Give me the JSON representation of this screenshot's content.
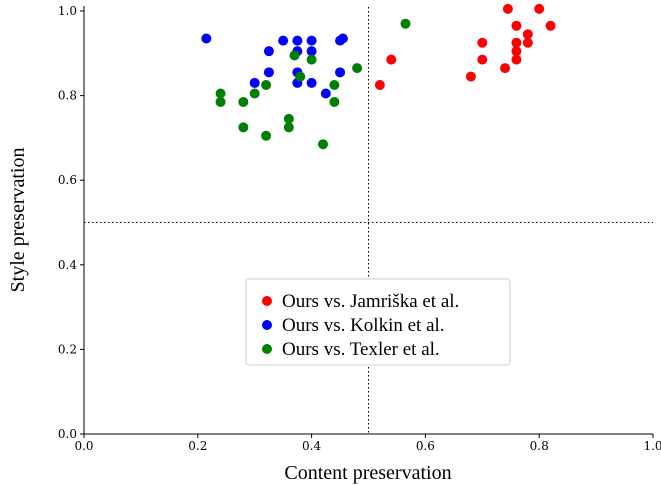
{
  "chart_data": {
    "type": "scatter",
    "xlabel": "Content preservation",
    "ylabel": "Style preservation",
    "xlim": [
      0.0,
      1.0
    ],
    "ylim": [
      0.0,
      1.0
    ],
    "xticks": [
      "0.0",
      "0.2",
      "0.4",
      "0.6",
      "0.8",
      "1.0"
    ],
    "yticks": [
      "0.0",
      "0.2",
      "0.4",
      "0.6",
      "0.8",
      "1.0"
    ],
    "grid": false,
    "reference_lines": {
      "x": 0.5,
      "y": 0.5,
      "style": "dotted"
    },
    "legend_position": "center",
    "series": [
      {
        "name": "Ours vs. Jamriška et al.",
        "color": "#ff0000",
        "points": [
          [
            0.52,
            0.825
          ],
          [
            0.54,
            0.885
          ],
          [
            0.68,
            0.845
          ],
          [
            0.7,
            0.885
          ],
          [
            0.7,
            0.925
          ],
          [
            0.74,
            0.865
          ],
          [
            0.745,
            1.005
          ],
          [
            0.76,
            0.965
          ],
          [
            0.76,
            0.925
          ],
          [
            0.76,
            0.905
          ],
          [
            0.76,
            0.885
          ],
          [
            0.78,
            0.945
          ],
          [
            0.78,
            0.925
          ],
          [
            0.8,
            1.005
          ],
          [
            0.82,
            0.965
          ]
        ]
      },
      {
        "name": "Ours vs. Kolkin et al.",
        "color": "#0000ff",
        "points": [
          [
            0.215,
            0.935
          ],
          [
            0.3,
            0.83
          ],
          [
            0.325,
            0.905
          ],
          [
            0.325,
            0.855
          ],
          [
            0.35,
            0.93
          ],
          [
            0.375,
            0.93
          ],
          [
            0.375,
            0.905
          ],
          [
            0.375,
            0.855
          ],
          [
            0.375,
            0.83
          ],
          [
            0.4,
            0.93
          ],
          [
            0.4,
            0.905
          ],
          [
            0.4,
            0.83
          ],
          [
            0.425,
            0.805
          ],
          [
            0.45,
            0.93
          ],
          [
            0.455,
            0.935
          ],
          [
            0.45,
            0.855
          ]
        ]
      },
      {
        "name": "Ours vs. Texler et al.",
        "color": "#008000",
        "points": [
          [
            0.24,
            0.805
          ],
          [
            0.24,
            0.785
          ],
          [
            0.28,
            0.785
          ],
          [
            0.28,
            0.725
          ],
          [
            0.3,
            0.805
          ],
          [
            0.32,
            0.825
          ],
          [
            0.32,
            0.705
          ],
          [
            0.36,
            0.745
          ],
          [
            0.36,
            0.725
          ],
          [
            0.37,
            0.895
          ],
          [
            0.38,
            0.845
          ],
          [
            0.4,
            0.885
          ],
          [
            0.42,
            0.685
          ],
          [
            0.44,
            0.825
          ],
          [
            0.44,
            0.785
          ],
          [
            0.48,
            0.865
          ],
          [
            0.565,
            0.97
          ]
        ]
      }
    ]
  }
}
